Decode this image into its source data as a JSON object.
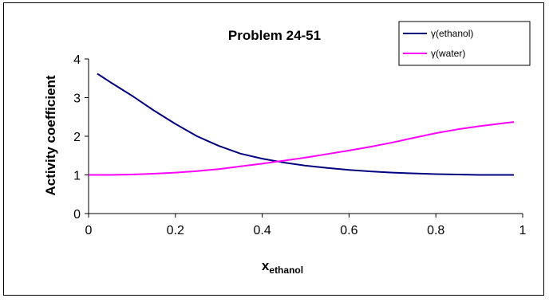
{
  "chart_data": {
    "type": "line",
    "title": "Problem 24-51",
    "xlabel": {
      "main": "x",
      "subscript": "ethanol"
    },
    "ylabel": "Activity coefficient",
    "xlim": [
      0,
      1
    ],
    "ylim": [
      0,
      4
    ],
    "xticks": [
      "0",
      "0.2",
      "0.4",
      "0.6",
      "0.8",
      "1"
    ],
    "yticks": [
      "0",
      "1",
      "2",
      "3",
      "4"
    ],
    "grid": false,
    "legend_position": "top-right",
    "series": [
      {
        "name": "γ(ethanol)",
        "color": "#000080",
        "x": [
          0.02,
          0.05,
          0.1,
          0.15,
          0.2,
          0.25,
          0.3,
          0.35,
          0.4,
          0.45,
          0.5,
          0.55,
          0.6,
          0.65,
          0.7,
          0.75,
          0.8,
          0.85,
          0.9,
          0.95,
          0.98
        ],
        "y": [
          3.62,
          3.4,
          3.05,
          2.67,
          2.32,
          2.0,
          1.75,
          1.55,
          1.42,
          1.32,
          1.24,
          1.18,
          1.13,
          1.09,
          1.06,
          1.04,
          1.02,
          1.01,
          1.0,
          1.0,
          1.0
        ]
      },
      {
        "name": "γ(water)",
        "color": "#ff00ff",
        "x": [
          0.0,
          0.05,
          0.1,
          0.15,
          0.2,
          0.25,
          0.3,
          0.35,
          0.4,
          0.45,
          0.5,
          0.55,
          0.6,
          0.65,
          0.7,
          0.75,
          0.8,
          0.85,
          0.9,
          0.95,
          0.98
        ],
        "y": [
          1.0,
          1.0,
          1.01,
          1.03,
          1.06,
          1.1,
          1.15,
          1.22,
          1.29,
          1.37,
          1.45,
          1.54,
          1.63,
          1.73,
          1.84,
          1.96,
          2.08,
          2.18,
          2.26,
          2.33,
          2.37
        ]
      }
    ]
  }
}
